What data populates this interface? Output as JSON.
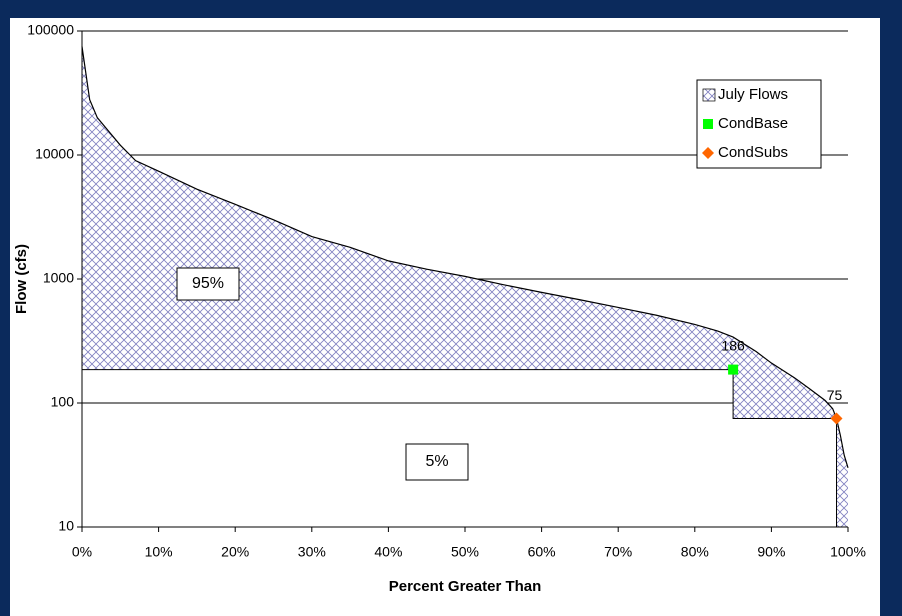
{
  "chart_data": {
    "type": "area",
    "x_label": "Percent Greater Than",
    "y_label": "Flow (cfs)",
    "log_y": true,
    "grid": true,
    "legend": "upper right",
    "xlim": [
      0,
      100
    ],
    "xticks": [
      {
        "value": 0,
        "label": "0%"
      },
      {
        "value": 10,
        "label": "10%"
      },
      {
        "value": 20,
        "label": "20%"
      },
      {
        "value": 30,
        "label": "30%"
      },
      {
        "value": 40,
        "label": "40%"
      },
      {
        "value": 50,
        "label": "50%"
      },
      {
        "value": 60,
        "label": "60%"
      },
      {
        "value": 70,
        "label": "70%"
      },
      {
        "value": 80,
        "label": "80%"
      },
      {
        "value": 90,
        "label": "90%"
      },
      {
        "value": 100,
        "label": "100%"
      }
    ],
    "ylim": [
      10,
      100000
    ],
    "yticks": [
      10,
      100,
      1000,
      10000,
      100000
    ],
    "series": [
      {
        "name": "July Flows",
        "color": "#8080c0",
        "x": [
          0,
          1,
          2,
          5,
          7,
          10,
          15,
          20,
          25,
          30,
          35,
          40,
          45,
          50,
          55,
          60,
          65,
          70,
          75,
          80,
          83,
          85,
          88,
          90,
          93,
          95,
          97,
          98,
          98.5,
          99,
          99.5,
          100
        ],
        "values": [
          75000,
          28000,
          20000,
          12000,
          9000,
          7400,
          5300,
          4000,
          3000,
          2200,
          1800,
          1400,
          1200,
          1050,
          900,
          780,
          680,
          590,
          510,
          430,
          380,
          340,
          260,
          210,
          160,
          130,
          105,
          90,
          75,
          55,
          38,
          30
        ]
      },
      {
        "name": "CondBase",
        "color": "#00ff00",
        "x": [
          85
        ],
        "values": [
          186
        ]
      },
      {
        "name": "CondSubs",
        "color": "#ff6600",
        "x": [
          98.5
        ],
        "values": [
          75
        ]
      }
    ],
    "annotations": [
      "95%",
      "5%"
    ]
  }
}
